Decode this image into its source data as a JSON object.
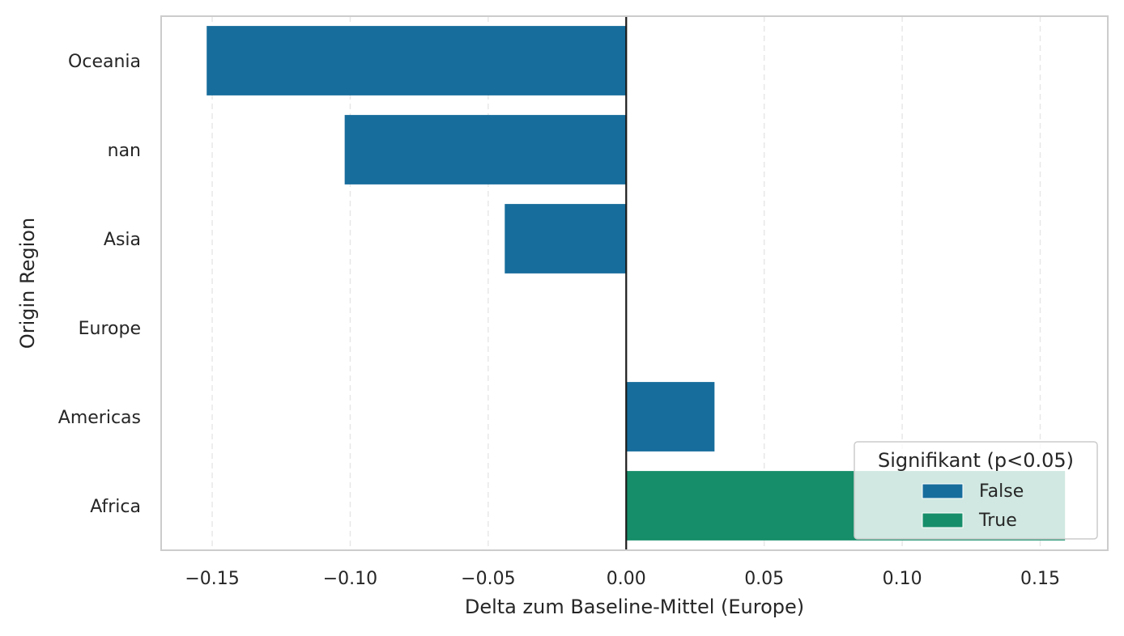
{
  "chart_data": {
    "type": "bar",
    "orientation": "horizontal",
    "title": "",
    "xlabel": "Delta zum Baseline-Mittel (Europe)",
    "ylabel": "Origin Region",
    "categories": [
      "Oceania",
      "nan",
      "Asia",
      "Europe",
      "Americas",
      "Africa"
    ],
    "values": [
      -0.152,
      -0.102,
      -0.044,
      0.0,
      0.032,
      0.159
    ],
    "significant": [
      false,
      false,
      false,
      false,
      false,
      true
    ],
    "xlim": [
      -0.1685,
      0.1745
    ],
    "xticks": [
      -0.15,
      -0.1,
      -0.05,
      0.0,
      0.05,
      0.1,
      0.15
    ],
    "xtick_labels": [
      "−0.15",
      "−0.10",
      "−0.05",
      "0.00",
      "0.05",
      "0.10",
      "0.15"
    ],
    "grid": "x",
    "reference_line": 0,
    "legend": {
      "title": "Signifikant (p<0.05)",
      "placement": "lower right",
      "entries": [
        {
          "label": "False",
          "color": "#176d9c"
        },
        {
          "label": "True",
          "color": "#168e69"
        }
      ]
    }
  }
}
